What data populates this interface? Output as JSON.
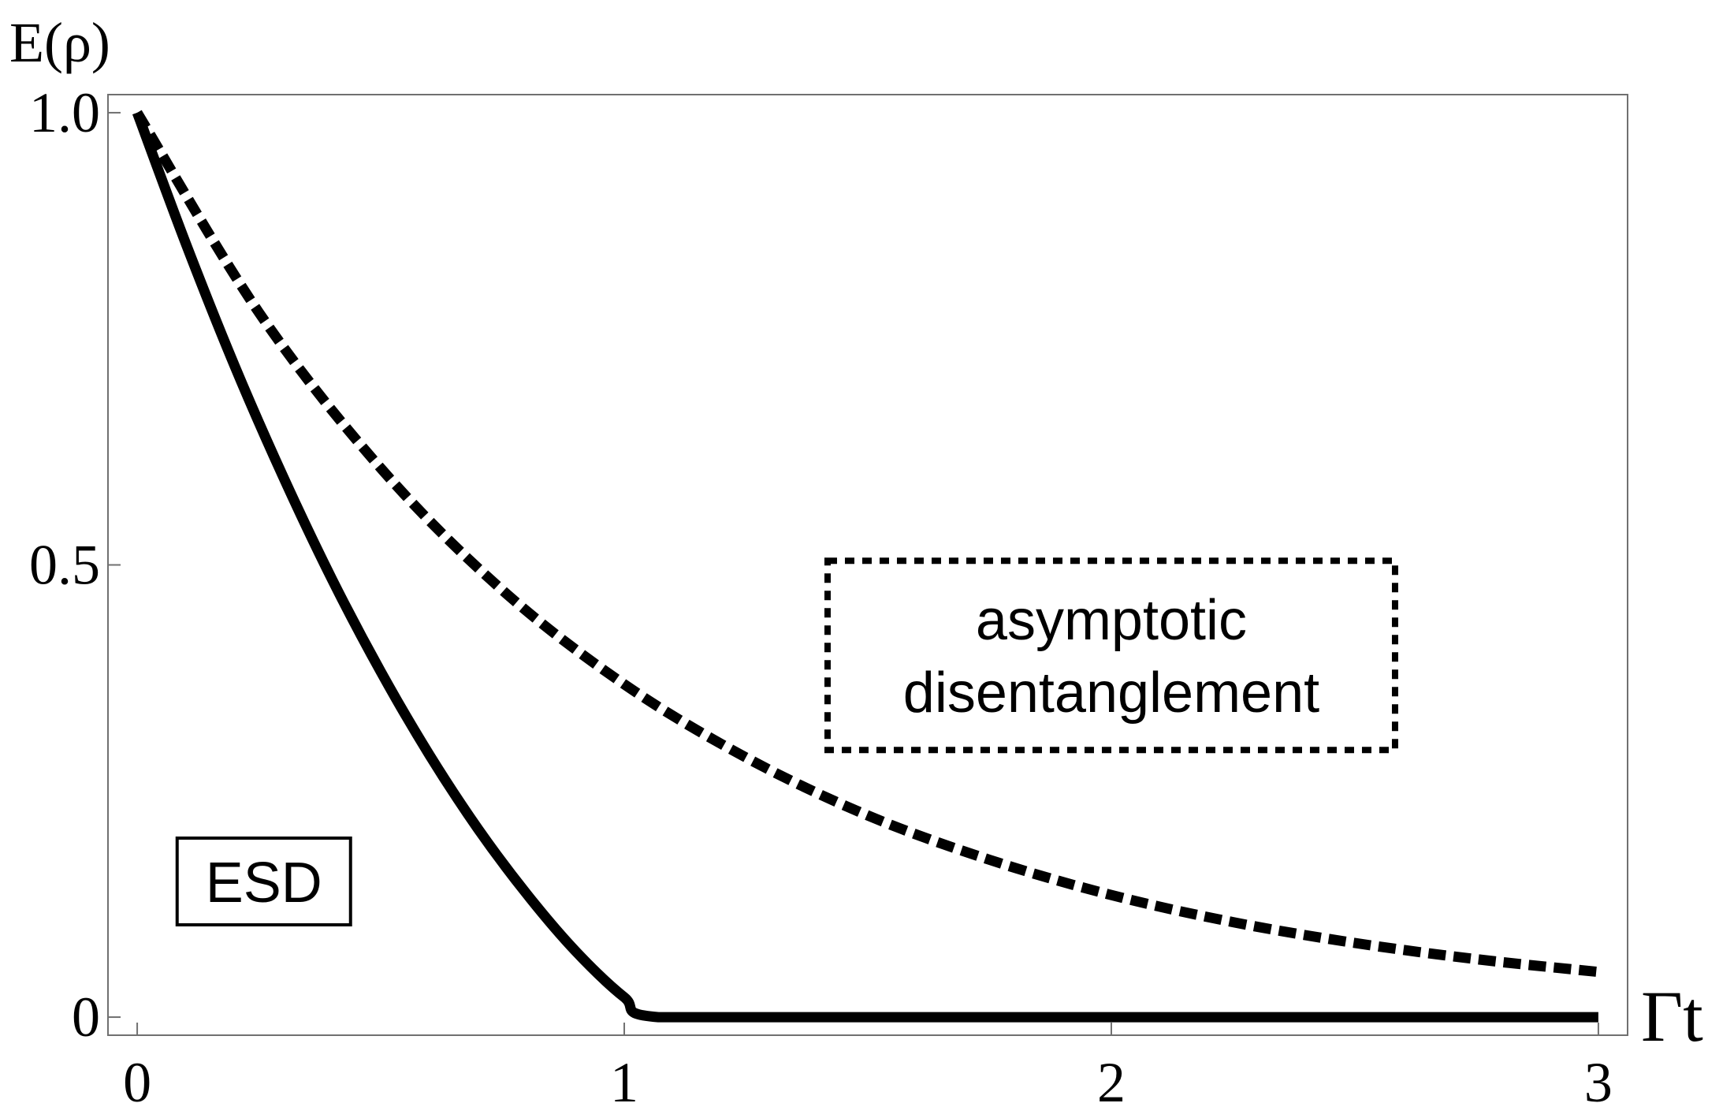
{
  "chart_data": {
    "type": "line",
    "title": "",
    "xlabel": "Γt",
    "ylabel": "E(ρ)",
    "xlim": [
      -0.06,
      3.06
    ],
    "ylim": [
      -0.02,
      1.02
    ],
    "grid": false,
    "x_ticks": [
      {
        "value": 0,
        "label": "0"
      },
      {
        "value": 1,
        "label": "1"
      },
      {
        "value": 2,
        "label": "2"
      },
      {
        "value": 3,
        "label": "3"
      }
    ],
    "y_ticks": [
      {
        "value": 0,
        "label": "0"
      },
      {
        "value": 0.5,
        "label": "0.5"
      },
      {
        "value": 1.0,
        "label": "1.0"
      }
    ],
    "series": [
      {
        "style": "solid",
        "color": "#000000",
        "x": [
          0,
          0.1,
          0.2,
          0.3,
          0.4,
          0.5,
          0.6,
          0.7,
          0.8,
          0.9,
          1.0,
          1.07,
          1.5,
          2.0,
          2.5,
          3.0
        ],
        "y": [
          1.0,
          0.855,
          0.72,
          0.597,
          0.484,
          0.382,
          0.29,
          0.208,
          0.136,
          0.073,
          0.022,
          0.0,
          0.0,
          0.0,
          0.0,
          0.0
        ]
      },
      {
        "style": "dashed",
        "color": "#000000",
        "x": [
          0,
          0.25,
          0.5,
          0.75,
          1.0,
          1.25,
          1.5,
          1.75,
          2.0,
          2.25,
          2.5,
          2.75,
          3.0
        ],
        "y": [
          1.0,
          0.779,
          0.607,
          0.472,
          0.368,
          0.287,
          0.223,
          0.174,
          0.135,
          0.105,
          0.082,
          0.064,
          0.05
        ]
      }
    ],
    "annotations": [
      {
        "text": "ESD",
        "x": 0.26,
        "y": 0.15,
        "box": "solid"
      },
      {
        "lines": [
          "asymptotic",
          "disentanglement"
        ],
        "x": 2.0,
        "y": 0.4,
        "box": "dotted"
      }
    ]
  }
}
